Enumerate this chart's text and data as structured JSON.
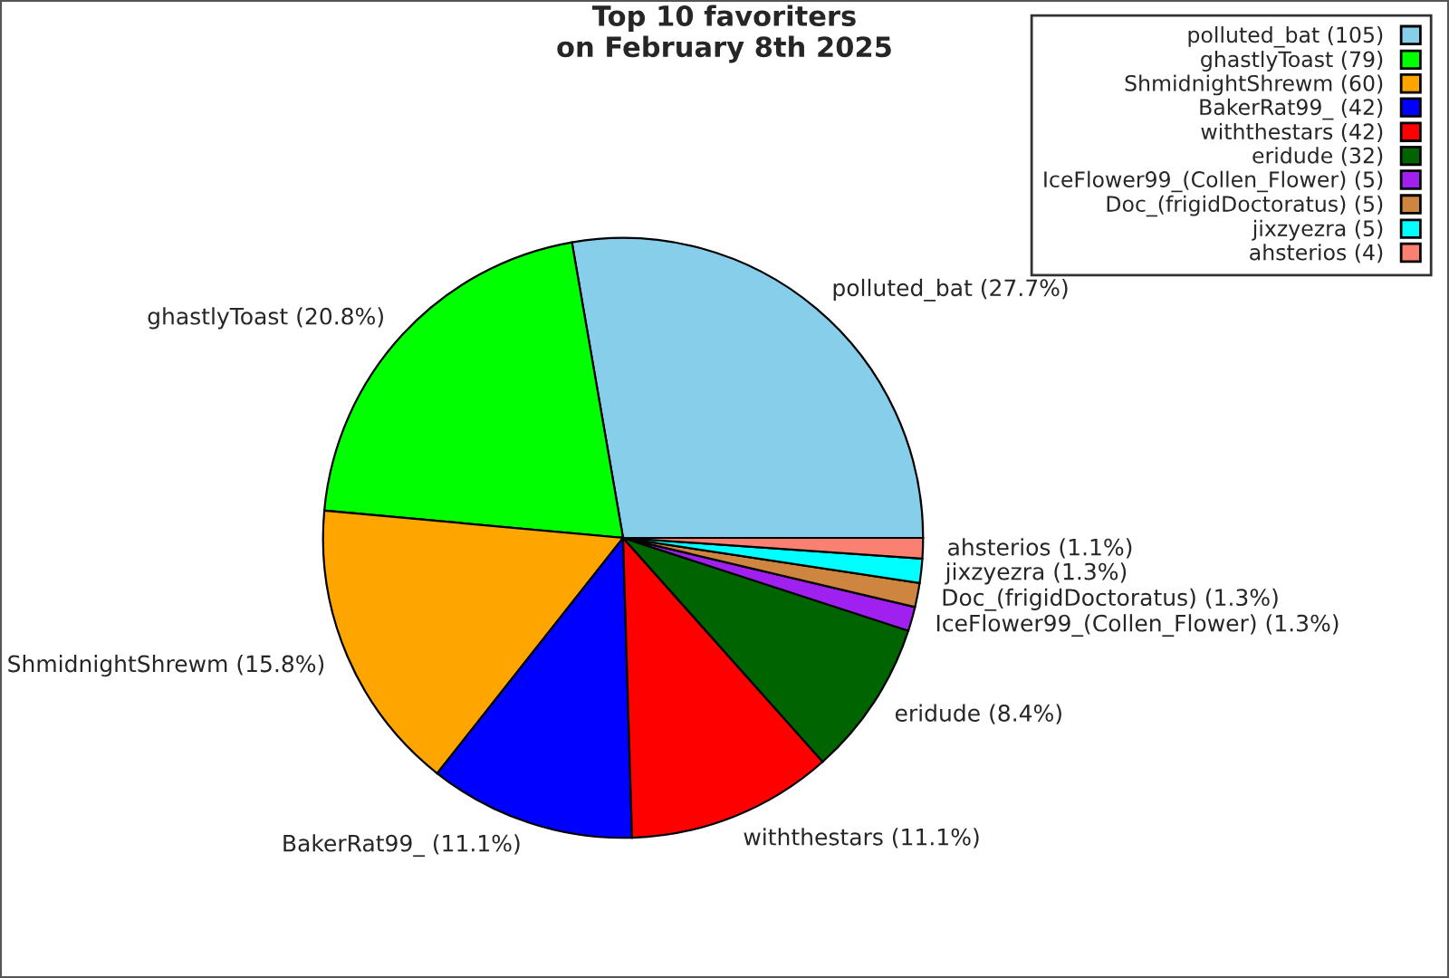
{
  "chart_data": {
    "type": "pie",
    "title": "Top 10 favoriters\non February 8th 2025",
    "categories": [
      "polluted_bat (105)",
      "ghastlyToast (79)",
      "ShmidnightShrewm (60)",
      "BakerRat99_ (42)",
      "withthestars (42)",
      "eridude (32)",
      "IceFlower99_(Collen_Flower) (5)",
      "Doc_(frigidDoctoratus) (5)",
      "jixzyezra (5)",
      "ahsterios (4)"
    ],
    "values": [
      27.7,
      20.8,
      15.8,
      11.1,
      11.1,
      8.4,
      1.3,
      1.3,
      1.3,
      1.1
    ],
    "value_labels": [
      "polluted_bat (27.7%)",
      "ghastlyToast (20.8%)",
      "ShmidnightShrewm (15.8%)",
      "BakerRat99_ (11.1%)",
      "withthestars (11.1%)",
      "eridude (8.4%)",
      "IceFlower99_(Collen_Flower) (1.3%)",
      "Doc_(frigidDoctoratus) (1.3%)",
      "jixzyezra (1.3%)",
      "ahsterios (1.1%)"
    ],
    "colors": [
      "#87ceeb",
      "#00ff00",
      "#ffa500",
      "#0000ff",
      "#ff0000",
      "#006400",
      "#a020f0",
      "#cd853f",
      "#00ffff",
      "#fa8072"
    ],
    "legend": "top right"
  }
}
